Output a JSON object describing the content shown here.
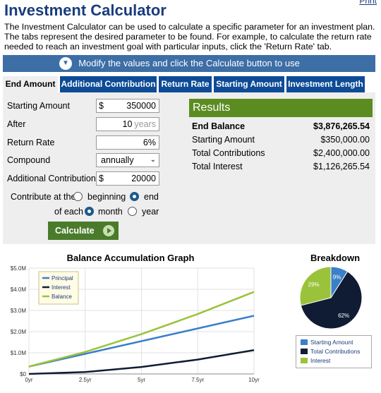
{
  "header": {
    "title": "Investment Calculator",
    "print_link": "Print",
    "description": "The Investment Calculator can be used to calculate a specific parameter for an investment plan. The tabs represent the desired parameter to be found. For example, to calculate the return rate needed to reach an investment goal with particular inputs, click the 'Return Rate' tab."
  },
  "banner": {
    "icon": "chevron-down-icon",
    "text": "Modify the values and click the Calculate button to use"
  },
  "tabs": [
    {
      "label": "End Amount",
      "active": true
    },
    {
      "label": "Additional Contribution"
    },
    {
      "label": "Return Rate"
    },
    {
      "label": "Starting Amount"
    },
    {
      "label": "Investment Length"
    }
  ],
  "form": {
    "starting_amount": {
      "label": "Starting Amount",
      "prefix": "$",
      "value": "350000"
    },
    "after": {
      "label": "After",
      "value": "10",
      "unit": "years"
    },
    "return_rate": {
      "label": "Return Rate",
      "value": "6",
      "unit": "%"
    },
    "compound": {
      "label": "Compound",
      "value": "annually"
    },
    "additional_contribution": {
      "label": "Additional Contribution",
      "prefix": "$",
      "value": "20000"
    },
    "contribute_at": {
      "label": "Contribute at the",
      "options": [
        "beginning",
        "end"
      ],
      "selected": "end"
    },
    "of_each": {
      "label": "of each",
      "options": [
        "month",
        "year"
      ],
      "selected": "month"
    },
    "calculate_label": "Calculate"
  },
  "results": {
    "heading": "Results",
    "rows": [
      {
        "label": "End Balance",
        "value": "$3,876,265.54"
      },
      {
        "label": "Starting Amount",
        "value": "$350,000.00"
      },
      {
        "label": "Total Contributions",
        "value": "$2,400,000.00"
      },
      {
        "label": "Total Interest",
        "value": "$1,126,265.54"
      }
    ]
  },
  "graph": {
    "title": "Balance Accumulation Graph",
    "chart_data": {
      "type": "line",
      "x": [
        0,
        2.5,
        5,
        7.5,
        10
      ],
      "x_tick_labels": [
        "0yr",
        "2.5yr",
        "5yr",
        "7.5yr",
        "10yr"
      ],
      "y_tick_labels": [
        "$0",
        "$1.0M",
        "$2.0M",
        "$3.0M",
        "$4.0M",
        "$5.0M"
      ],
      "ylim": [
        0,
        5000000
      ],
      "xlim": [
        0,
        10
      ],
      "grid": true,
      "legend_placement": "top-left",
      "series": [
        {
          "name": "Principal",
          "color": "#3b7fc9",
          "values": [
            350000,
            950000,
            1550000,
            2150000,
            2750000
          ]
        },
        {
          "name": "Interest",
          "color": "#101c33",
          "values": [
            0,
            90000,
            330000,
            680000,
            1126265
          ]
        },
        {
          "name": "Balance",
          "color": "#9ac33b",
          "values": [
            350000,
            1040000,
            1880000,
            2830000,
            3876265
          ]
        }
      ]
    }
  },
  "breakdown": {
    "title": "Breakdown",
    "chart_data": {
      "type": "pie",
      "slices": [
        {
          "name": "Starting Amount",
          "value": 9,
          "label": "9%",
          "color": "#3b7fc9"
        },
        {
          "name": "Total Contributions",
          "value": 62,
          "label": "62%",
          "color": "#101c33"
        },
        {
          "name": "Interest",
          "value": 29,
          "label": "29%",
          "color": "#9ac33b"
        }
      ]
    }
  }
}
